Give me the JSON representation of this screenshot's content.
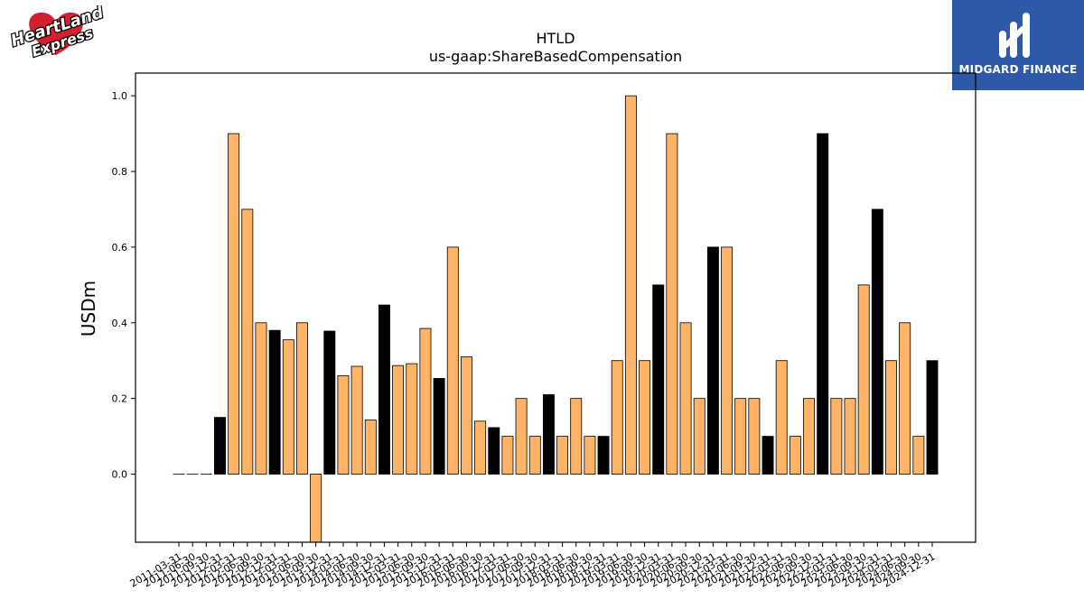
{
  "logos": {
    "left_text_top": "HeartLand",
    "left_text_bottom": "Express",
    "right_text": "MIDGARD FINANCE"
  },
  "colors": {
    "bar_default": "#ffb366",
    "bar_highlight": "#000000",
    "edge": "#000000",
    "right_logo_bg": "#2e59a8",
    "left_logo_red": "#d3202f"
  },
  "chart_data": {
    "type": "bar",
    "title": "HTLD",
    "subtitle": "us-gaap:ShareBasedCompensation",
    "xlabel": "",
    "ylabel": "USDm",
    "ylim": [
      -0.18,
      1.06
    ],
    "yticks": [
      "0.0",
      "0.2",
      "0.4",
      "0.6",
      "0.8",
      "1.0"
    ],
    "grid": false,
    "categories": [
      "2011-03-31",
      "2011-06-30",
      "2011-09-30",
      "2011-12-31",
      "2012-03-31",
      "2012-06-30",
      "2012-09-30",
      "2012-12-31",
      "2013-03-31",
      "2013-06-30",
      "2013-09-30",
      "2013-12-31",
      "2014-03-31",
      "2014-06-30",
      "2014-09-30",
      "2014-12-31",
      "2015-03-31",
      "2015-06-30",
      "2015-09-30",
      "2015-12-31",
      "2016-03-31",
      "2016-06-30",
      "2016-09-30",
      "2016-12-31",
      "2017-03-31",
      "2017-06-30",
      "2017-09-30",
      "2017-12-31",
      "2018-03-31",
      "2018-06-30",
      "2018-09-30",
      "2018-12-31",
      "2019-03-31",
      "2019-06-30",
      "2019-09-30",
      "2019-12-31",
      "2020-03-31",
      "2020-06-30",
      "2020-09-30",
      "2020-12-31",
      "2021-03-31",
      "2021-06-30",
      "2021-09-30",
      "2021-12-31",
      "2022-03-31",
      "2022-06-30",
      "2022-09-30",
      "2022-12-31",
      "2023-03-31",
      "2023-06-30",
      "2023-09-30",
      "2023-12-31",
      "2024-03-31",
      "2024-06-30",
      "2024-09-30",
      "2024-12-31"
    ],
    "values": [
      0.0,
      0.0,
      0.0,
      0.15,
      0.9,
      0.7,
      0.4,
      0.38,
      0.355,
      0.4,
      -0.19,
      0.378,
      0.26,
      0.285,
      0.143,
      0.447,
      0.287,
      0.292,
      0.385,
      0.253,
      0.6,
      0.31,
      0.14,
      0.123,
      0.1,
      0.2,
      0.1,
      0.21,
      0.1,
      0.2,
      0.1,
      0.1,
      0.3,
      1.0,
      0.3,
      0.5,
      0.9,
      0.4,
      0.2,
      0.6,
      0.6,
      0.2,
      0.2,
      0.1,
      0.3,
      0.1,
      0.2,
      0.9,
      0.2,
      0.2,
      0.5,
      0.7,
      0.3,
      0.4,
      0.1,
      0.3
    ],
    "highlight": [
      false,
      false,
      false,
      true,
      false,
      false,
      false,
      true,
      false,
      false,
      false,
      true,
      false,
      false,
      false,
      true,
      false,
      false,
      false,
      true,
      false,
      false,
      false,
      true,
      false,
      false,
      false,
      true,
      false,
      false,
      false,
      true,
      false,
      false,
      false,
      true,
      false,
      false,
      false,
      true,
      false,
      false,
      false,
      true,
      false,
      false,
      false,
      true,
      false,
      false,
      false,
      true,
      false,
      false,
      false,
      true
    ]
  }
}
